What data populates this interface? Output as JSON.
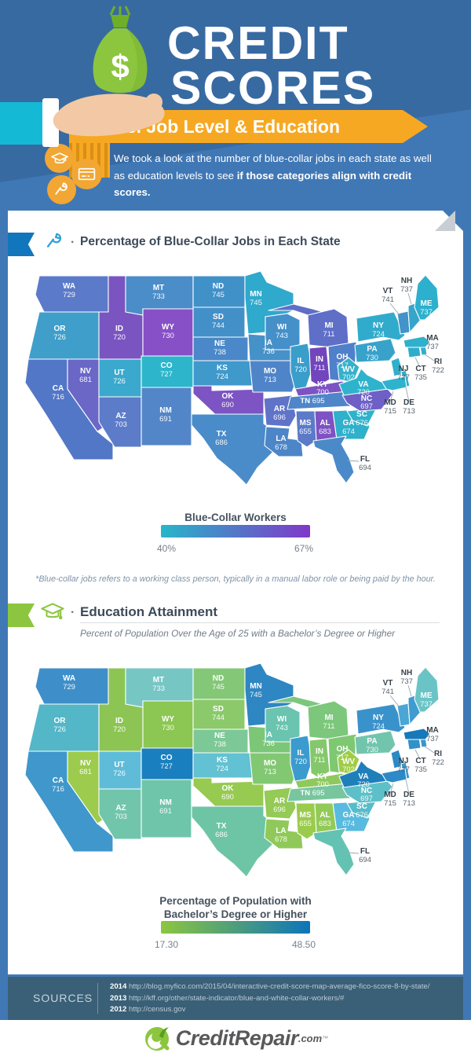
{
  "page": {
    "bg_blue": "#4078b6",
    "accent_orange": "#f7a823",
    "accent_green": "#8cc63f",
    "accent_blue_ribbon": "#1176bb",
    "accent_teal_sleeve": "#14b9d6"
  },
  "header": {
    "title_line1": "CREDIT",
    "title_line2": "SCORES",
    "banner_text": "vs. Job Level & Education",
    "intro_line1": "We took a look at the number of blue-collar jobs in each state as well",
    "intro_line2_prefix": "as education levels to see ",
    "intro_line2_bold": "if those categories align with credit scores."
  },
  "sections": {
    "jobs": {
      "bullet": "·",
      "title": "Percentage of Blue-Collar Jobs in Each State",
      "legend_title": "Blue-Collar Workers",
      "legend_min": "40%",
      "legend_max": "67%",
      "footnote": "*Blue-collar jobs refers to a working class person, typically in a manual labor role or being paid by the hour."
    },
    "education": {
      "bullet": "·",
      "title": "Education Attainment",
      "subtitle": "Percent of Population Over the Age of 25 with a Bachelor’s Degree or Higher",
      "legend_title_line1": "Percentage of Population with",
      "legend_title_line2": "Bachelor’s Degree or Higher",
      "legend_min": "17.30",
      "legend_max": "48.50"
    }
  },
  "sources": {
    "label": "SOURCES",
    "chevron": "›",
    "items": [
      {
        "year": "2014",
        "url": "http://blog.myfico.com/2015/04/interactive-credit-score-map-average-fico-score-8-by-state/"
      },
      {
        "year": "2013",
        "url": "http://kff.org/other/state-indicator/blue-and-white-collar-workers/#"
      },
      {
        "year": "2012",
        "url": "http://census.gov"
      }
    ]
  },
  "footer": {
    "brand": "CreditRepair",
    "suffix": ".com",
    "tm": "™"
  },
  "chart_data": [
    {
      "type": "choropleth",
      "region": "United States (lower 48)",
      "title": "Percentage of Blue-Collar Jobs in Each State",
      "legend_title": "Blue-Collar Workers",
      "scale_min": "40%",
      "scale_max": "67%",
      "gradient": [
        "#27b6c9",
        "#8038c8"
      ],
      "states": [
        {
          "abbr": "WA",
          "score": 729,
          "fill": "#5b7ac9"
        },
        {
          "abbr": "OR",
          "score": 726,
          "fill": "#3f9fca"
        },
        {
          "abbr": "CA",
          "score": 716,
          "fill": "#5377c7"
        },
        {
          "abbr": "NV",
          "score": 681,
          "fill": "#6a67c7"
        },
        {
          "abbr": "ID",
          "score": 720,
          "fill": "#7a55c1"
        },
        {
          "abbr": "MT",
          "score": 733,
          "fill": "#4a8dc9"
        },
        {
          "abbr": "WY",
          "score": 730,
          "fill": "#8850c7"
        },
        {
          "abbr": "UT",
          "score": 726,
          "fill": "#3ba9cd"
        },
        {
          "abbr": "CO",
          "score": 727,
          "fill": "#2db5cb"
        },
        {
          "abbr": "AZ",
          "score": 703,
          "fill": "#5c7cc9"
        },
        {
          "abbr": "NM",
          "score": 691,
          "fill": "#5386c9"
        },
        {
          "abbr": "ND",
          "score": 745,
          "fill": "#4191c9"
        },
        {
          "abbr": "SD",
          "score": 744,
          "fill": "#4390c9"
        },
        {
          "abbr": "NE",
          "score": 738,
          "fill": "#4b88c9"
        },
        {
          "abbr": "KS",
          "score": 724,
          "fill": "#3f99cb"
        },
        {
          "abbr": "OK",
          "score": 690,
          "fill": "#7c54c3"
        },
        {
          "abbr": "TX",
          "score": 686,
          "fill": "#4a8bc9"
        },
        {
          "abbr": "MN",
          "score": 745,
          "fill": "#2fa9cc"
        },
        {
          "abbr": "IA",
          "score": 736,
          "fill": "#4791c9"
        },
        {
          "abbr": "MO",
          "score": 713,
          "fill": "#4f84c9"
        },
        {
          "abbr": "AR",
          "score": 696,
          "fill": "#5f74c8"
        },
        {
          "abbr": "LA",
          "score": 678,
          "fill": "#4c86c8"
        },
        {
          "abbr": "WI",
          "score": 743,
          "fill": "#4590c9"
        },
        {
          "abbr": "IL",
          "score": 720,
          "fill": "#3a9ecb"
        },
        {
          "abbr": "MI",
          "score": 711,
          "fill": "#5f6ec7"
        },
        {
          "abbr": "IN",
          "score": 711,
          "fill": "#7245bd"
        },
        {
          "abbr": "OH",
          "score": 717,
          "fill": "#5080c9"
        },
        {
          "abbr": "KY",
          "score": 700,
          "fill": "#7d53c3"
        },
        {
          "abbr": "TN",
          "score": 695,
          "fill": "#4f86c9"
        },
        {
          "abbr": "MS",
          "score": 655,
          "fill": "#5b7ac8"
        },
        {
          "abbr": "AL",
          "score": 683,
          "fill": "#7e52c2"
        },
        {
          "abbr": "GA",
          "score": 674,
          "fill": "#2fb0cb"
        },
        {
          "abbr": "FL",
          "score": 694,
          "fill": "#4b8ac9"
        },
        {
          "abbr": "SC",
          "score": 676,
          "fill": "#2eb3cc"
        },
        {
          "abbr": "NC",
          "score": 697,
          "fill": "#6e60c6"
        },
        {
          "abbr": "WV",
          "score": 702,
          "fill": "#35b1cb"
        },
        {
          "abbr": "VA",
          "score": 720,
          "fill": "#2fb3cc"
        },
        {
          "abbr": "PA",
          "score": 730,
          "fill": "#38a2cb"
        },
        {
          "abbr": "NY",
          "score": 724,
          "fill": "#31abcb"
        },
        {
          "abbr": "NJ",
          "score": 727,
          "fill": "#2fb0cc"
        },
        {
          "abbr": "DE",
          "score": 713,
          "fill": "#30b0cc"
        },
        {
          "abbr": "MD",
          "score": 715,
          "fill": "#2fb3cc"
        },
        {
          "abbr": "CT",
          "score": 735,
          "fill": "#30adcb"
        },
        {
          "abbr": "RI",
          "score": 722,
          "fill": "#32aecb"
        },
        {
          "abbr": "MA",
          "score": 737,
          "fill": "#2fb0cc"
        },
        {
          "abbr": "VT",
          "score": 741,
          "fill": "#4193c9"
        },
        {
          "abbr": "NH",
          "score": 737,
          "fill": "#36a5cb"
        },
        {
          "abbr": "ME",
          "score": 737,
          "fill": "#2cb0cd"
        }
      ]
    },
    {
      "type": "choropleth",
      "region": "United States (lower 48)",
      "title": "Education Attainment",
      "legend_title": "Percentage of Population with Bachelor’s Degree or Higher",
      "scale_min": "17.30",
      "scale_max": "48.50",
      "gradient": [
        "#8cc63f",
        "#0e74ba"
      ],
      "states": [
        {
          "abbr": "WA",
          "score": 729,
          "fill": "#3e8fc9"
        },
        {
          "abbr": "OR",
          "score": 726,
          "fill": "#53b7c8"
        },
        {
          "abbr": "CA",
          "score": 716,
          "fill": "#3f97cb"
        },
        {
          "abbr": "NV",
          "score": 681,
          "fill": "#9ccb4e"
        },
        {
          "abbr": "ID",
          "score": 720,
          "fill": "#8cc554"
        },
        {
          "abbr": "MT",
          "score": 733,
          "fill": "#76c6c4"
        },
        {
          "abbr": "WY",
          "score": 730,
          "fill": "#8cc653"
        },
        {
          "abbr": "UT",
          "score": 726,
          "fill": "#5fbcd9"
        },
        {
          "abbr": "CO",
          "score": 727,
          "fill": "#1a7fbe"
        },
        {
          "abbr": "AZ",
          "score": 703,
          "fill": "#71c5ab"
        },
        {
          "abbr": "NM",
          "score": 691,
          "fill": "#6fc5a9"
        },
        {
          "abbr": "ND",
          "score": 745,
          "fill": "#84c877"
        },
        {
          "abbr": "SD",
          "score": 744,
          "fill": "#8bc96a"
        },
        {
          "abbr": "NE",
          "score": 738,
          "fill": "#7dc897"
        },
        {
          "abbr": "KS",
          "score": 724,
          "fill": "#62c1d2"
        },
        {
          "abbr": "OK",
          "score": 690,
          "fill": "#97ca51"
        },
        {
          "abbr": "TX",
          "score": 686,
          "fill": "#6ec5a5"
        },
        {
          "abbr": "MN",
          "score": 745,
          "fill": "#2e86c3"
        },
        {
          "abbr": "IA",
          "score": 736,
          "fill": "#7cc777"
        },
        {
          "abbr": "MO",
          "score": 713,
          "fill": "#82c873"
        },
        {
          "abbr": "AR",
          "score": 696,
          "fill": "#94ca55"
        },
        {
          "abbr": "LA",
          "score": 678,
          "fill": "#90c959"
        },
        {
          "abbr": "WI",
          "score": 743,
          "fill": "#6ac4af"
        },
        {
          "abbr": "IL",
          "score": 720,
          "fill": "#3c9bce"
        },
        {
          "abbr": "MI",
          "score": 711,
          "fill": "#7cc77c"
        },
        {
          "abbr": "IN",
          "score": 711,
          "fill": "#85c86b"
        },
        {
          "abbr": "OH",
          "score": 717,
          "fill": "#7ec871"
        },
        {
          "abbr": "KY",
          "score": 700,
          "fill": "#8fc95e"
        },
        {
          "abbr": "TN",
          "score": 695,
          "fill": "#77c69e"
        },
        {
          "abbr": "MS",
          "score": 655,
          "fill": "#9bcb4c"
        },
        {
          "abbr": "AL",
          "score": 683,
          "fill": "#92ca58"
        },
        {
          "abbr": "GA",
          "score": 674,
          "fill": "#58bade"
        },
        {
          "abbr": "FL",
          "score": 694,
          "fill": "#64c2b2"
        },
        {
          "abbr": "SC",
          "score": 676,
          "fill": "#57bcc9"
        },
        {
          "abbr": "NC",
          "score": 697,
          "fill": "#5dc0c8"
        },
        {
          "abbr": "WV",
          "score": 702,
          "fill": "#a0cc47"
        },
        {
          "abbr": "VA",
          "score": 720,
          "fill": "#1f7fbb"
        },
        {
          "abbr": "PA",
          "score": 730,
          "fill": "#72c5ad"
        },
        {
          "abbr": "NY",
          "score": 724,
          "fill": "#3a92cb"
        },
        {
          "abbr": "NJ",
          "score": 727,
          "fill": "#2b8ac5"
        },
        {
          "abbr": "DE",
          "score": 713,
          "fill": "#3b97cd"
        },
        {
          "abbr": "MD",
          "score": 715,
          "fill": "#2e8ac6"
        },
        {
          "abbr": "CT",
          "score": 735,
          "fill": "#3191c9"
        },
        {
          "abbr": "RI",
          "score": 722,
          "fill": "#3a95cb"
        },
        {
          "abbr": "MA",
          "score": 737,
          "fill": "#1778ba"
        },
        {
          "abbr": "VT",
          "score": 741,
          "fill": "#4aa6d4"
        },
        {
          "abbr": "NH",
          "score": 737,
          "fill": "#3f9cd0"
        },
        {
          "abbr": "ME",
          "score": 737,
          "fill": "#6ac4c6"
        }
      ]
    }
  ]
}
